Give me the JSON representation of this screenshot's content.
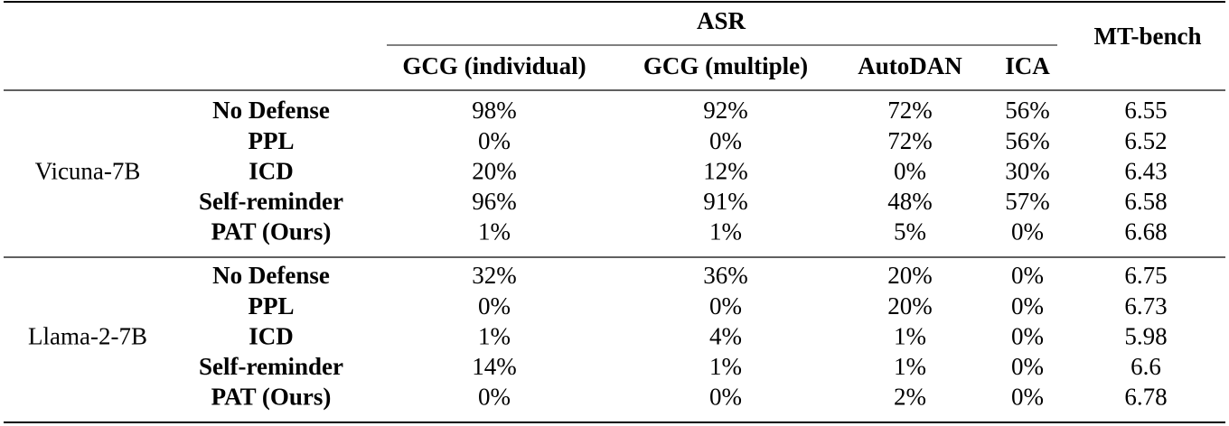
{
  "header": {
    "asr": "ASR",
    "mt_bench": "MT-bench",
    "columns": [
      "GCG (individual)",
      "GCG (multiple)",
      "AutoDAN",
      "ICA"
    ]
  },
  "groups": [
    {
      "model": "Vicuna-7B",
      "rows": [
        {
          "method": "No Defense",
          "values": [
            "98%",
            "92%",
            "72%",
            "56%"
          ],
          "mt_bench": "6.55"
        },
        {
          "method": "PPL",
          "values": [
            "0%",
            "0%",
            "72%",
            "56%"
          ],
          "mt_bench": "6.52"
        },
        {
          "method": "ICD",
          "values": [
            "20%",
            "12%",
            "0%",
            "30%"
          ],
          "mt_bench": "6.43"
        },
        {
          "method": "Self-reminder",
          "values": [
            "96%",
            "91%",
            "48%",
            "57%"
          ],
          "mt_bench": "6.58"
        },
        {
          "method": "PAT (Ours)",
          "values": [
            "1%",
            "1%",
            "5%",
            "0%"
          ],
          "mt_bench": "6.68"
        }
      ]
    },
    {
      "model": "Llama-2-7B",
      "rows": [
        {
          "method": "No Defense",
          "values": [
            "32%",
            "36%",
            "20%",
            "0%"
          ],
          "mt_bench": "6.75"
        },
        {
          "method": "PPL",
          "values": [
            "0%",
            "0%",
            "20%",
            "0%"
          ],
          "mt_bench": "6.73"
        },
        {
          "method": "ICD",
          "values": [
            "1%",
            "4%",
            "1%",
            "0%"
          ],
          "mt_bench": "5.98"
        },
        {
          "method": "Self-reminder",
          "values": [
            "14%",
            "1%",
            "1%",
            "0%"
          ],
          "mt_bench": "6.6"
        },
        {
          "method": "PAT (Ours)",
          "values": [
            "0%",
            "0%",
            "2%",
            "0%"
          ],
          "mt_bench": "6.78"
        }
      ]
    }
  ]
}
